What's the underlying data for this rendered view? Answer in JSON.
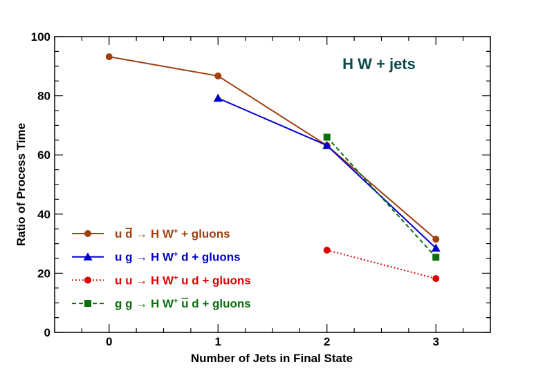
{
  "chart_data": {
    "type": "line",
    "title": "",
    "annotation": "H W + jets",
    "xlabel": "Number of Jets in Final State",
    "ylabel": "Ratio of Process Time",
    "xlim": [
      -0.5,
      3.5
    ],
    "ylim": [
      0,
      100
    ],
    "xticks": [
      0,
      1,
      2,
      3
    ],
    "yticks": [
      0,
      20,
      40,
      60,
      80,
      100
    ],
    "legend_position": "bottom-left",
    "colors": {
      "annotation": "#0d4a4a",
      "axis": "#000000"
    },
    "series": [
      {
        "name": "u d̄ → H W⁺ + gluons",
        "legend_parts": [
          "u d",
          "→",
          "H W",
          "+",
          " + gluons"
        ],
        "color": "#a0400f",
        "marker": "circle",
        "line": "solid",
        "x": [
          0,
          1,
          2,
          3
        ],
        "values": [
          93.2,
          86.7,
          63.2,
          31.5
        ]
      },
      {
        "name": "u g → H W⁺ d + gluons",
        "legend_parts": [
          "u g",
          "→",
          "H W",
          "+",
          " d + gluons"
        ],
        "color": "#0000cc",
        "marker": "triangle",
        "line": "solid",
        "x": [
          1,
          2,
          3
        ],
        "values": [
          79.2,
          63.2,
          28.5
        ]
      },
      {
        "name": "u u → H W⁺ u d + gluons",
        "legend_parts": [
          "u u",
          "→",
          "H W",
          "+",
          " u d + gluons"
        ],
        "color": "#e00000",
        "marker": "circle",
        "line": "dotted",
        "x": [
          2,
          3
        ],
        "values": [
          27.8,
          18.2
        ]
      },
      {
        "name": "g g → H W⁺ ū d + gluons",
        "legend_parts": [
          "g g",
          "→",
          "H W",
          "+",
          " u",
          " d + gluons"
        ],
        "color": "#0b6e0b",
        "marker": "square",
        "line": "dashed",
        "x": [
          2,
          3
        ],
        "values": [
          66.0,
          25.4
        ]
      }
    ]
  }
}
